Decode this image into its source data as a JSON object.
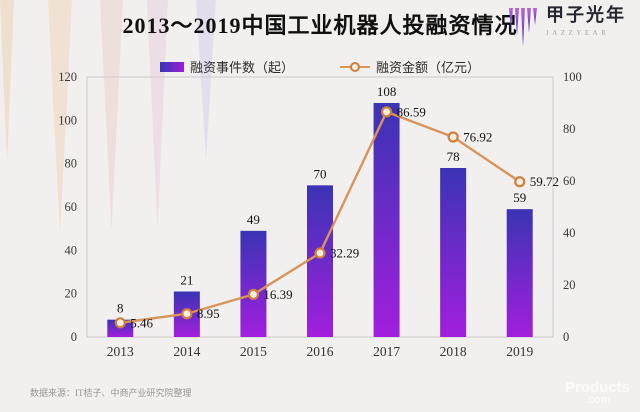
{
  "header": {
    "title": "2013～2019中国工业机器人投融资情况",
    "logo_name": "甲子光年",
    "logo_sub": "JAZZYEAR"
  },
  "legend": {
    "items": [
      {
        "label": "融资事件数（起）",
        "swatch": "bar-swatch"
      },
      {
        "label": "融资金额（亿元）",
        "swatch": "line-swatch"
      }
    ]
  },
  "chart_data": {
    "type": "combo-bar-line",
    "title": "2013～2019中国工业机器人投融资情况",
    "categories": [
      "2013",
      "2014",
      "2015",
      "2016",
      "2017",
      "2018",
      "2019"
    ],
    "series": [
      {
        "name": "融资事件数（起）",
        "type": "bar",
        "axis": "left",
        "values": [
          8,
          21,
          49,
          70,
          108,
          78,
          59
        ]
      },
      {
        "name": "融资金额（亿元）",
        "type": "line",
        "axis": "right",
        "values": [
          5.46,
          8.95,
          16.39,
          32.29,
          86.59,
          76.92,
          59.72
        ]
      }
    ],
    "left_axis": {
      "min": 0,
      "max": 120,
      "ticks": [
        0,
        20,
        40,
        60,
        80,
        100,
        120
      ]
    },
    "right_axis": {
      "min": 0,
      "max": 100,
      "ticks": [
        0,
        20,
        40,
        60,
        80,
        100
      ]
    },
    "grid": false,
    "legend_position": "top",
    "colors": {
      "bar_top": "#3a34b4",
      "bar_bottom": "#a21fdd",
      "line": "#d9945c",
      "marker_fill": "#f8eedd",
      "marker_stroke": "#cf803f",
      "plot_border": "#c9c9c9"
    }
  },
  "footer": {
    "source": "数据来源：IT桔子、中商产业研究院整理",
    "watermark_line1": "Products",
    "watermark_line2": ".com"
  }
}
